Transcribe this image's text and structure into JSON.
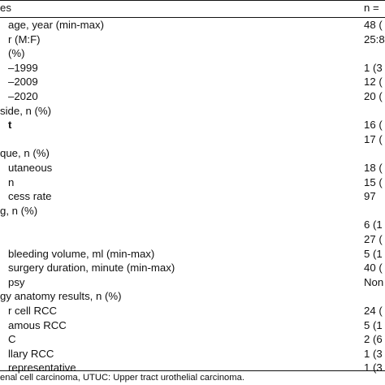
{
  "header": {
    "left": "es",
    "right": "n ="
  },
  "rows": [
    {
      "left": "age, year (min-max)",
      "right": "48 (",
      "bold_prefix": true,
      "indent": 2
    },
    {
      "left": "r (M:F)",
      "right": "25:8",
      "indent": 2
    },
    {
      "left": " (%)",
      "right": "",
      "indent": 2
    },
    {
      "left": "–1999",
      "right": "1 (3",
      "indent": 2
    },
    {
      "left": "–2009",
      "right": "12 (",
      "indent": 2
    },
    {
      "left": "–2020",
      "right": "20 (",
      "indent": 2
    },
    {
      "left": " side, n (%)",
      "right": "",
      "indent": 1
    },
    {
      "left": "t",
      "right": "16 (",
      "indent": 2,
      "bold": true
    },
    {
      "left": "",
      "right": "17 (",
      "indent": 2
    },
    {
      "left": "que, n (%)",
      "right": "",
      "indent": 1
    },
    {
      "left": "utaneous",
      "right": "18 (",
      "indent": 2
    },
    {
      "left": "n",
      "right": "15 (",
      "indent": 2
    },
    {
      "left": "cess rate",
      "right": "97",
      "indent": 2
    },
    {
      "left": "g, n (%)",
      "right": "",
      "indent": 1
    },
    {
      "left": "",
      "right": "6 (1",
      "indent": 2
    },
    {
      "left": "",
      "right": "27 (",
      "indent": 2
    },
    {
      "left": "bleeding volume, ml (min-max)",
      "right": "5 (1",
      "bold_prefix": true,
      "indent": 2
    },
    {
      "left": "surgery duration, minute (min-max)",
      "right": "40 (",
      "bold_prefix": true,
      "indent": 2
    },
    {
      "left": "psy",
      "right": "Non",
      "indent": 2
    },
    {
      "left": "gy anatomy results, n (%)",
      "right": "",
      "indent": 1
    },
    {
      "left": "r cell RCC",
      "right": "24 (",
      "indent": 2,
      "bold_first": true
    },
    {
      "left": "amous RCC",
      "right": "5 (1",
      "indent": 2
    },
    {
      "left": "C",
      "right": "2 (6",
      "indent": 2
    },
    {
      "left": "llary RCC",
      "right": "1 (3",
      "indent": 2
    },
    {
      "left": "representative",
      "right": "1 (3",
      "indent": 2
    }
  ],
  "footnote": "enal cell carcinoma, UTUC: Upper tract urothelial carcinoma."
}
